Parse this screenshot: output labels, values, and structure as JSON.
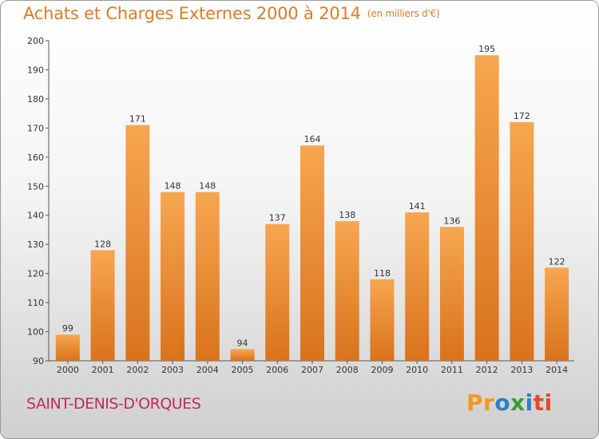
{
  "chart_data": {
    "type": "bar",
    "title": "Achats et Charges Externes 2000 à 2014",
    "unit_label": "(en milliers d'€)",
    "categories": [
      "2000",
      "2001",
      "2002",
      "2003",
      "2004",
      "2005",
      "2006",
      "2007",
      "2008",
      "2009",
      "2010",
      "2011",
      "2012",
      "2013",
      "2014"
    ],
    "values": [
      99,
      128,
      171,
      148,
      148,
      94,
      137,
      164,
      138,
      118,
      141,
      136,
      195,
      172,
      122
    ],
    "ylim": [
      90,
      200
    ],
    "yticks": [
      90,
      100,
      110,
      120,
      130,
      140,
      150,
      160,
      170,
      180,
      190,
      200
    ],
    "grid": false,
    "colors": {
      "bar_light": "#f7a650",
      "bar_dark": "#d9731c",
      "title": "#e07a24"
    }
  },
  "place_name": "SAINT-DENIS-D'ORQUES",
  "brand": {
    "letters": [
      "P",
      "r",
      "o",
      "x",
      "i",
      "t",
      "i"
    ],
    "colors": [
      "#f29a1e",
      "#f29a1e",
      "#2f7fc9",
      "#3a9d3a",
      "#2f7fc9",
      "#e04a2a",
      "#e04a2a"
    ]
  }
}
